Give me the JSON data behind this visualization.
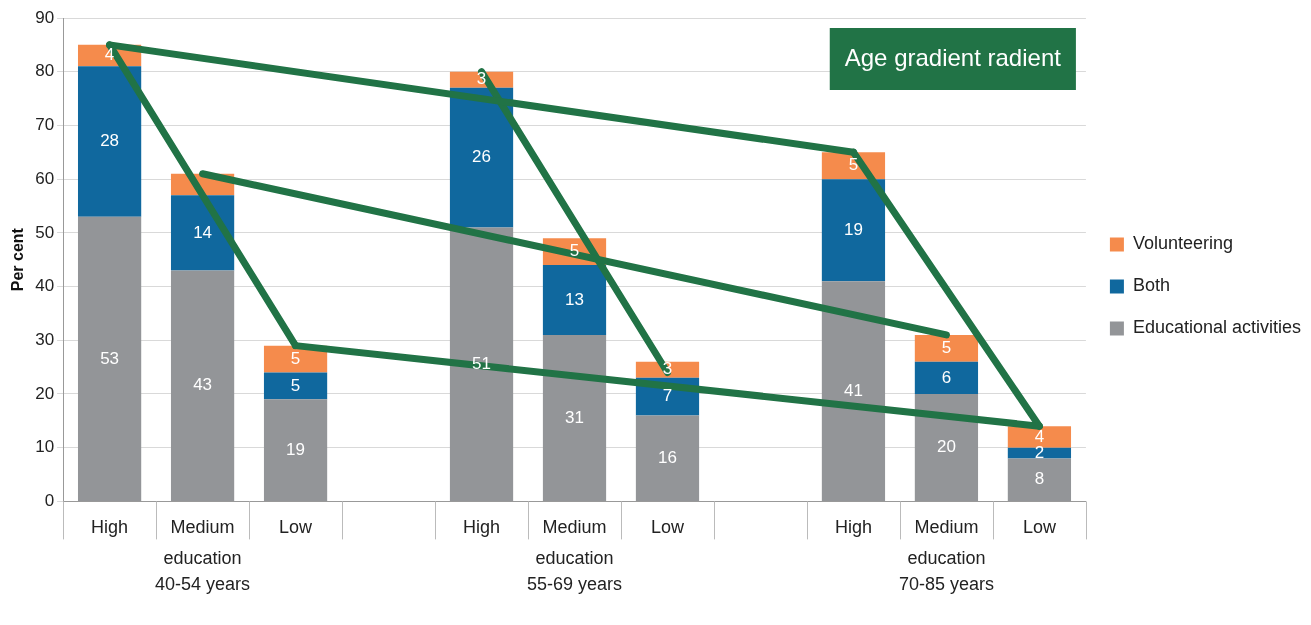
{
  "chart_data": {
    "type": "bar",
    "stacked": true,
    "ylabel": "Per cent",
    "categories": [
      "High",
      "Medium",
      "Low",
      null,
      "High",
      "Medium",
      "Low",
      null,
      "High",
      "Medium",
      "Low"
    ],
    "ylim": [
      0,
      90
    ],
    "yticks": [
      0,
      10,
      20,
      30,
      40,
      50,
      60,
      70,
      80,
      90
    ],
    "grid": "y",
    "legend": "right",
    "series": [
      {
        "name": "Educational activities",
        "color": "#939598",
        "values": [
          53,
          43,
          19,
          null,
          51,
          31,
          16,
          null,
          41,
          20,
          8
        ],
        "value_labels": [
          "53",
          "43",
          "19",
          null,
          "51",
          "31",
          "16",
          null,
          "41",
          "20",
          "8"
        ]
      },
      {
        "name": "Both",
        "color": "#10689e",
        "values": [
          28,
          14,
          5,
          null,
          26,
          13,
          7,
          null,
          19,
          6,
          2
        ],
        "value_labels": [
          "28",
          "14",
          "5",
          null,
          "26",
          "13",
          "7",
          null,
          "19",
          "6",
          "2"
        ]
      },
      {
        "name": "Volunteering",
        "color": "#f58b4c",
        "values": [
          4,
          4,
          5,
          null,
          3,
          5,
          3,
          null,
          5,
          5,
          4
        ],
        "value_labels": [
          "4",
          null,
          "5",
          null,
          "3",
          "5",
          "3",
          null,
          "5",
          "5",
          "4"
        ]
      },
      {
        "type": "line",
        "color": "#217346",
        "values": [
          85,
          null,
          null,
          null,
          null,
          null,
          null,
          null,
          65,
          null,
          null
        ]
      },
      {
        "type": "line",
        "color": "#217346",
        "values": [
          null,
          61,
          null,
          null,
          null,
          null,
          null,
          null,
          null,
          31,
          null
        ]
      },
      {
        "type": "line",
        "color": "#217346",
        "values": [
          null,
          null,
          29,
          null,
          null,
          null,
          null,
          null,
          null,
          null,
          14
        ]
      },
      {
        "type": "line",
        "color": "#217346",
        "values": [
          85,
          null,
          29,
          null,
          null,
          null,
          null,
          null,
          null,
          null,
          null
        ]
      },
      {
        "type": "line",
        "color": "#217346",
        "values": [
          null,
          null,
          null,
          null,
          80,
          null,
          24,
          null,
          null,
          null,
          null
        ]
      },
      {
        "type": "line",
        "color": "#217346",
        "values": [
          null,
          null,
          null,
          null,
          null,
          null,
          null,
          null,
          65,
          null,
          14
        ]
      }
    ],
    "annotations": [
      "Age gradient radient",
      "education\n40-54 years",
      "education\n55-69 years",
      "education\n70-85 years"
    ]
  }
}
